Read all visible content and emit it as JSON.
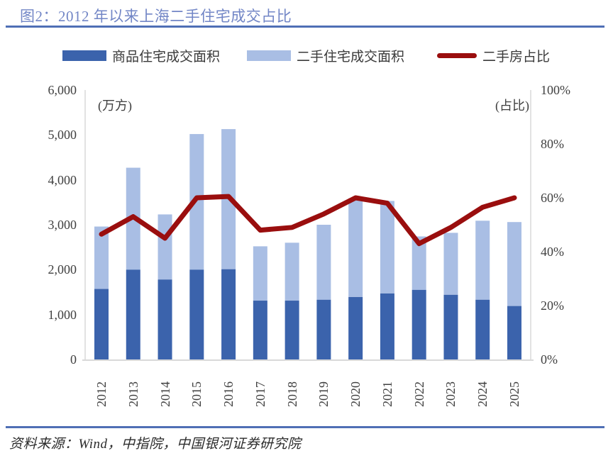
{
  "header": {
    "title": "图2：2012 年以来上海二手住宅成交占比",
    "title_color": "#7286c6",
    "rule_color": "#4f6fb5"
  },
  "footer": {
    "source": "资料来源：Wind，中指院，中国银河证券研究院"
  },
  "chart_data": {
    "type": "bar",
    "subtype": "stacked-bars-with-line",
    "categories": [
      "2012",
      "2013",
      "2014",
      "2015",
      "2016",
      "2017",
      "2018",
      "2019",
      "2020",
      "2021",
      "2022",
      "2023",
      "2024",
      "2025"
    ],
    "series": [
      {
        "name": "商品住宅成交面积",
        "type": "bar",
        "axis": "left",
        "color": "#3b63ac",
        "values": [
          1570,
          2000,
          1780,
          2000,
          2010,
          1310,
          1310,
          1330,
          1390,
          1470,
          1550,
          1440,
          1330,
          1190
        ]
      },
      {
        "name": "二手住宅成交面积",
        "type": "bar",
        "axis": "left",
        "color": "#a9bee4",
        "values": [
          1390,
          2270,
          1450,
          3020,
          3120,
          1210,
          1290,
          1670,
          2200,
          2060,
          1190,
          1380,
          1760,
          1870
        ]
      },
      {
        "name": "二手房占比",
        "type": "line",
        "axis": "right",
        "color": "#9a0e0e",
        "values": [
          46.5,
          53,
          45,
          60,
          60.5,
          48,
          49,
          54,
          60,
          58,
          43,
          49,
          56.5,
          60
        ]
      }
    ],
    "left_axis": {
      "label": "(万方)",
      "min": 0,
      "max": 6000,
      "tick_values": [
        6000,
        5000,
        4000,
        3000,
        2000,
        1000,
        0
      ],
      "tick_labels": [
        "6,000",
        "5,000",
        "4,000",
        "3,000",
        "2,000",
        "1,000",
        "0"
      ]
    },
    "right_axis": {
      "label": "(占比)",
      "min": 0,
      "max": 100,
      "tick_values": [
        100,
        80,
        60,
        40,
        20,
        0
      ],
      "tick_labels": [
        "100%",
        "80%",
        "60%",
        "40%",
        "20%",
        "0%"
      ]
    },
    "grid": false,
    "legend_position": "top",
    "plot_border_color": "#d9d9d9"
  }
}
